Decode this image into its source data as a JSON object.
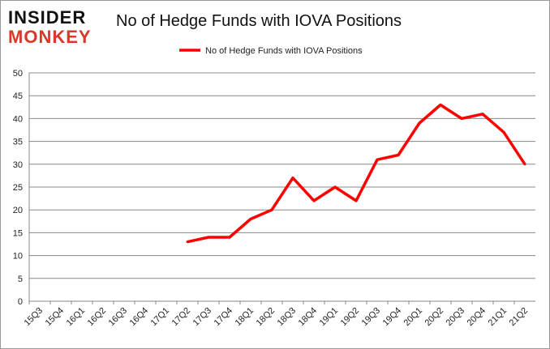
{
  "logo": {
    "line1": "INSIDER",
    "line2": "MONKEY"
  },
  "chart_data": {
    "type": "line",
    "title": "No of Hedge Funds with IOVA Positions",
    "xlabel": "",
    "ylabel": "",
    "categories": [
      "15Q3",
      "15Q4",
      "16Q1",
      "16Q2",
      "16Q3",
      "16Q4",
      "17Q1",
      "17Q2",
      "17Q3",
      "17Q4",
      "18Q1",
      "18Q2",
      "18Q3",
      "18Q4",
      "19Q1",
      "19Q2",
      "19Q3",
      "19Q4",
      "20Q1",
      "20Q2",
      "20Q3",
      "20Q4",
      "21Q1",
      "21Q2"
    ],
    "series": [
      {
        "name": "No of Hedge Funds with IOVA Positions",
        "color": "#ff0000",
        "values": [
          null,
          null,
          null,
          null,
          null,
          null,
          null,
          13,
          14,
          14,
          18,
          20,
          27,
          22,
          25,
          22,
          31,
          32,
          39,
          43,
          40,
          41,
          37,
          30
        ]
      }
    ],
    "ylim": [
      0,
      50
    ],
    "yticks": [
      0,
      5,
      10,
      15,
      20,
      25,
      30,
      35,
      40,
      45,
      50
    ],
    "grid": true,
    "legend": "top-center"
  }
}
